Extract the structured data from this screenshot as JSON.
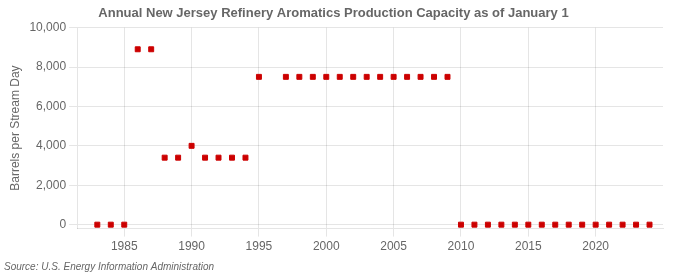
{
  "chart_data": {
    "type": "scatter",
    "title": "Annual New Jersey Refinery Aromatics Production Capacity as of January 1",
    "ylabel": "Barrels per Stream Day",
    "source": "Source: U.S. Energy Information Administration",
    "color": "#cc0000",
    "marker": "square",
    "grid": true,
    "xlim": [
      1981.5,
      2025
    ],
    "xticks": [
      1985,
      1990,
      1995,
      2000,
      2005,
      2010,
      2015,
      2020
    ],
    "ylim": [
      -200,
      10000
    ],
    "yticks": [
      0,
      {
        "value": 2000,
        "label": "2,000"
      },
      {
        "value": 4000,
        "label": "4,000"
      },
      {
        "value": 6000,
        "label": "6,000"
      },
      {
        "value": 8000,
        "label": "8,000"
      },
      {
        "value": 10000,
        "label": "10,000"
      }
    ],
    "x": [
      1983,
      1984,
      1985,
      1986,
      1987,
      1988,
      1989,
      1990,
      1991,
      1992,
      1993,
      1994,
      1995,
      1997,
      1998,
      1999,
      2000,
      2001,
      2002,
      2003,
      2004,
      2005,
      2006,
      2007,
      2008,
      2009,
      2010,
      2011,
      2012,
      2013,
      2014,
      2015,
      2016,
      2017,
      2018,
      2019,
      2020,
      2021,
      2022,
      2023,
      2024
    ],
    "values": [
      0,
      0,
      0,
      8900,
      8900,
      3400,
      3400,
      4000,
      3400,
      3400,
      3400,
      3400,
      7500,
      7500,
      7500,
      7500,
      7500,
      7500,
      7500,
      7500,
      7500,
      7500,
      7500,
      7500,
      7500,
      7500,
      0,
      0,
      0,
      0,
      0,
      0,
      0,
      0,
      0,
      0,
      0,
      0,
      0,
      0,
      0
    ]
  }
}
